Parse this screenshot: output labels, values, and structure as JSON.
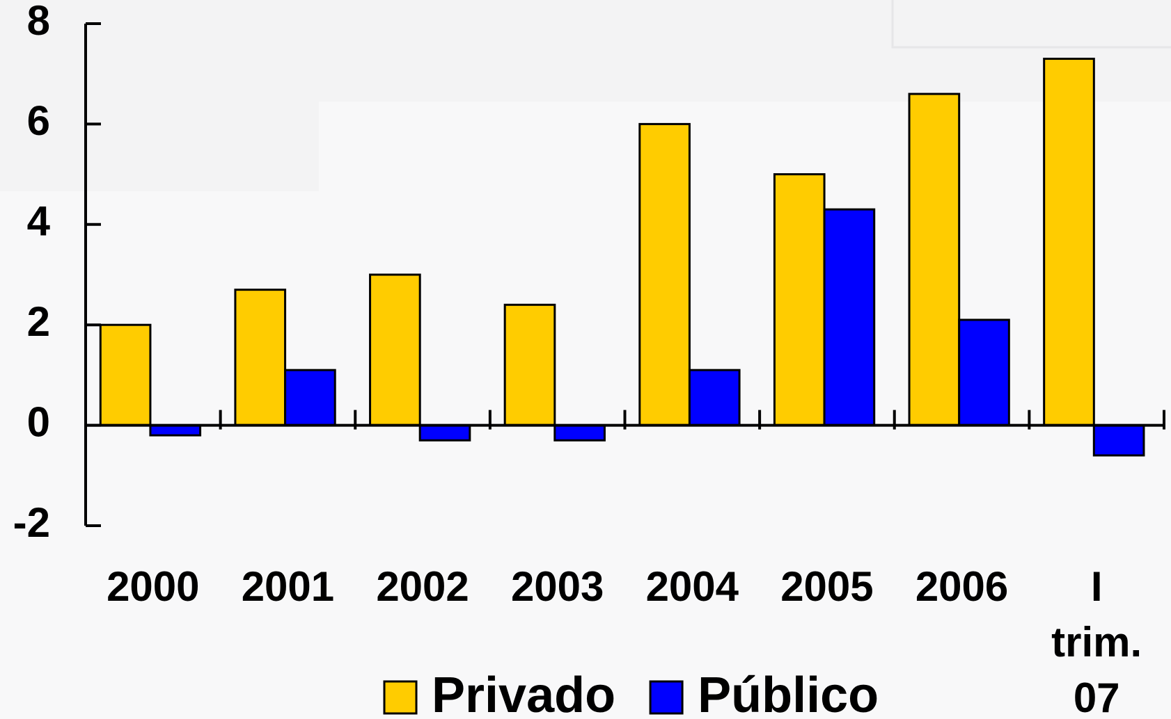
{
  "chart_data": {
    "type": "bar",
    "categories": [
      "2000",
      "2001",
      "2002",
      "2003",
      "2004",
      "2005",
      "2006",
      "I trim. 07"
    ],
    "series": [
      {
        "name": "Privado",
        "color": "#ffcc00",
        "values": [
          2.0,
          2.7,
          3.0,
          2.4,
          6.0,
          5.0,
          6.6,
          7.3
        ]
      },
      {
        "name": "Público",
        "color": "#0000ff",
        "values": [
          -0.2,
          1.1,
          -0.3,
          -0.3,
          1.1,
          4.3,
          2.1,
          -0.6
        ]
      }
    ],
    "ylim": [
      -2,
      8
    ],
    "yticks": [
      -2,
      0,
      2,
      4,
      6,
      8
    ],
    "grid": false,
    "legend": "bottom"
  }
}
